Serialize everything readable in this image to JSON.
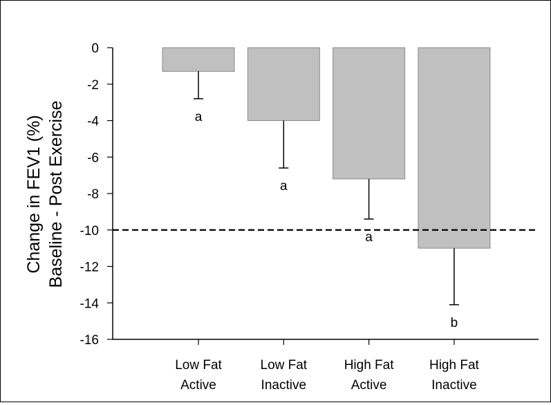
{
  "chart_data": {
    "type": "bar",
    "categories": [
      {
        "line1": "Low Fat",
        "line2": "Active"
      },
      {
        "line1": "Low Fat",
        "line2": "Inactive"
      },
      {
        "line1": "High Fat",
        "line2": "Active"
      },
      {
        "line1": "High Fat",
        "line2": "Inactive"
      }
    ],
    "values": [
      -1.3,
      -4.0,
      -7.2,
      -11.0
    ],
    "error_lower": [
      -2.8,
      -6.6,
      -9.4,
      -14.1
    ],
    "significance_labels": [
      "a",
      "a",
      "a",
      "b"
    ],
    "ylabel_line1": "Change in FEV1 (%)",
    "ylabel_line2": "Baseline - Post Exercise",
    "ylim": [
      -16,
      0
    ],
    "yticks": [
      0,
      -2,
      -4,
      -6,
      -8,
      -10,
      -12,
      -14,
      -16
    ],
    "reference_line": -10,
    "bar_color": "#c0c0c0",
    "grid": false
  }
}
